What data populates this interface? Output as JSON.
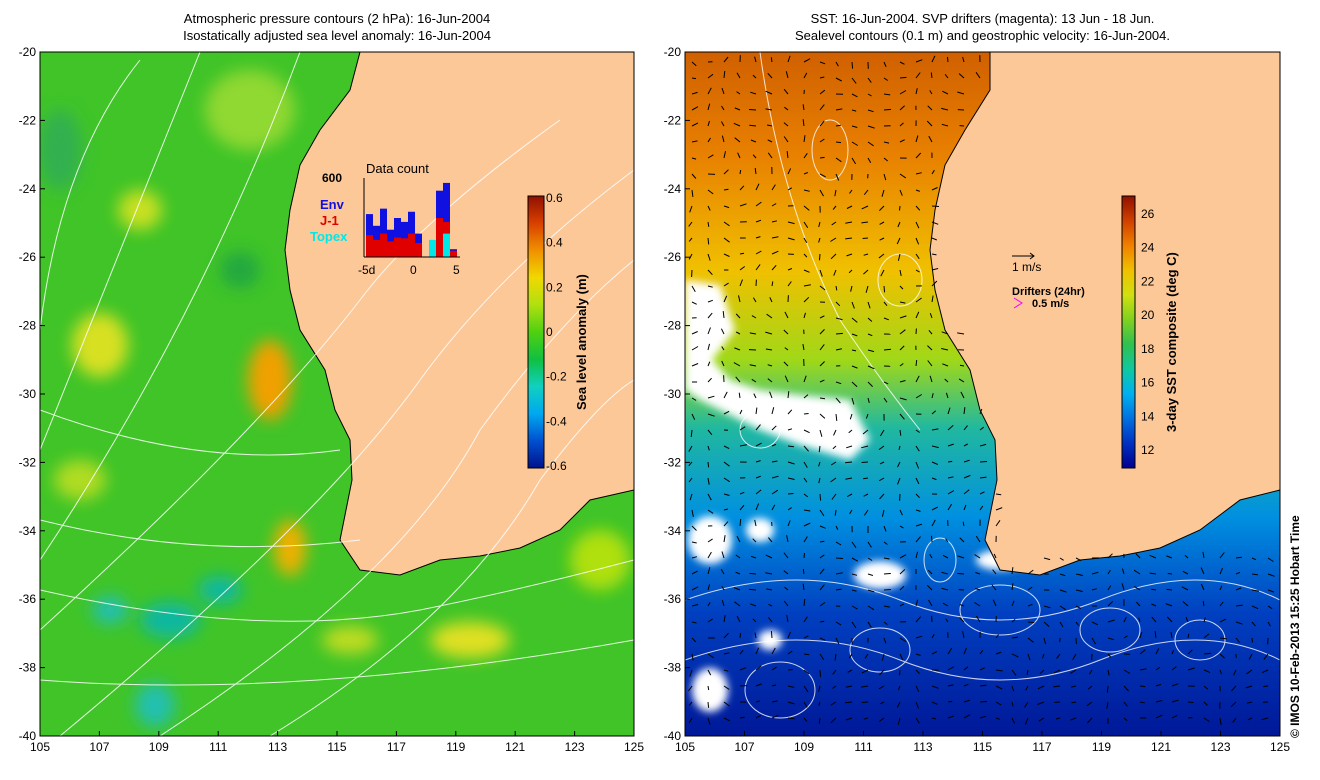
{
  "left_panel": {
    "title_line1": "Atmospheric pressure contours (2 hPa): 16-Jun-2004",
    "title_line2": "Isostatically adjusted sea level anomaly: 16-Jun-2004",
    "lat_ticks": [
      "-20",
      "-22",
      "-24",
      "-26",
      "-28",
      "-30",
      "-32",
      "-34",
      "-36",
      "-38",
      "-40"
    ],
    "lon_ticks": [
      "105",
      "107",
      "109",
      "111",
      "113",
      "115",
      "117",
      "119",
      "121",
      "123",
      "125"
    ],
    "colorbar": {
      "label": "Sea level anomaly (m)",
      "ticks": [
        "0.6",
        "0.4",
        "0.2",
        "0",
        "-0.2",
        "-0.4",
        "-0.6"
      ]
    },
    "inset": {
      "title": "Data count",
      "max_label": "600",
      "legend": [
        {
          "name": "Env",
          "color": "#1010e0"
        },
        {
          "name": "J-1",
          "color": "#e00000"
        },
        {
          "name": "Topex",
          "color": "#00e8e8"
        }
      ],
      "x_ticks": [
        "-5d",
        "0",
        "5"
      ],
      "bars_fraction": [
        {
          "blue": 0.55,
          "red": 0.28
        },
        {
          "blue": 0.4,
          "red": 0.22
        },
        {
          "blue": 0.62,
          "red": 0.3
        },
        {
          "blue": 0.35,
          "red": 0.2
        },
        {
          "blue": 0.5,
          "red": 0.25
        },
        {
          "blue": 0.45,
          "red": 0.24
        },
        {
          "blue": 0.58,
          "red": 0.3
        },
        {
          "blue": 0.3,
          "red": 0.18
        },
        {
          "blue": 0.0,
          "red": 0.0
        },
        {
          "blue": 0.15,
          "red": 0.0,
          "cyan": 0.22
        },
        {
          "blue": 0.85,
          "red": 0.5
        },
        {
          "blue": 0.95,
          "red": 0.45,
          "cyan": 0.3
        },
        {
          "blue": 0.1,
          "red": 0.08
        }
      ]
    }
  },
  "right_panel": {
    "title_line1": "SST: 16-Jun-2004. SVP drifters (magenta): 13 Jun - 18 Jun.",
    "title_line2": "Sealevel contours (0.1 m) and geostrophic velocity: 16-Jun-2004.",
    "lat_ticks": [
      "-20",
      "-22",
      "-24",
      "-26",
      "-28",
      "-30",
      "-32",
      "-34",
      "-36",
      "-38",
      "-40"
    ],
    "lon_ticks": [
      "105",
      "107",
      "109",
      "111",
      "113",
      "115",
      "117",
      "119",
      "121",
      "123",
      "125"
    ],
    "colorbar": {
      "label": "3-day SST composite (deg C)",
      "ticks": [
        "26",
        "24",
        "22",
        "20",
        "18",
        "16",
        "14",
        "12"
      ]
    },
    "velocity_scale_label": "1 m/s",
    "drifters_label": "Drifters (24hr)",
    "drifter_speed_label": "0.5 m/s"
  },
  "credit": "© IMOS 10-Feb-2013 15:25 Hobart Time",
  "colors": {
    "land": "#fcc898",
    "sla_cmap": [
      "#00128c",
      "#0050d0",
      "#00a8f0",
      "#10d0c0",
      "#10c040",
      "#50d010",
      "#b0e010",
      "#f0d800",
      "#f09000",
      "#d84000",
      "#901000"
    ],
    "sst_cmap": [
      "#000090",
      "#0030c0",
      "#0070e0",
      "#00b0f0",
      "#10c8a0",
      "#30c050",
      "#80d020",
      "#d0e010",
      "#f0c000",
      "#f08000",
      "#d04000",
      "#901000"
    ]
  }
}
